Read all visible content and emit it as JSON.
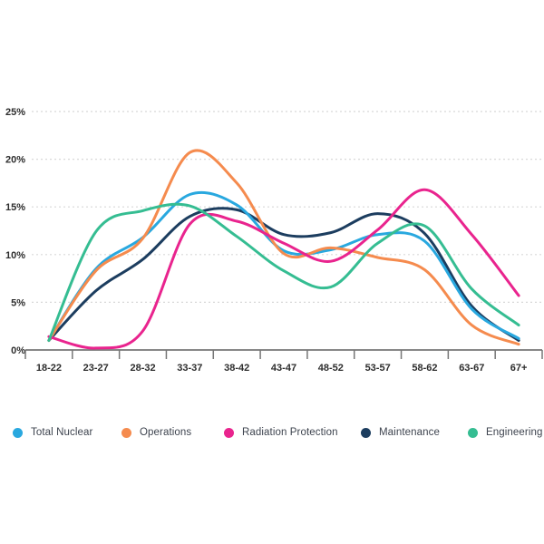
{
  "chart_data": {
    "type": "line",
    "title": "",
    "categories": [
      "18-22",
      "23-27",
      "28-32",
      "33-37",
      "38-42",
      "43-47",
      "48-52",
      "53-57",
      "58-62",
      "63-67",
      "67+"
    ],
    "series": [
      {
        "name": "Total Nuclear",
        "color": "#29a8df",
        "values": [
          1.0,
          8.5,
          11.8,
          16.3,
          15.2,
          10.4,
          10.5,
          12.1,
          11.4,
          4.3,
          1.2
        ]
      },
      {
        "name": "Operations",
        "color": "#f58b4e",
        "values": [
          1.0,
          8.3,
          11.7,
          20.7,
          17.5,
          10.1,
          10.7,
          9.7,
          8.4,
          2.6,
          0.6
        ]
      },
      {
        "name": "Radiation Protection",
        "color": "#e9248e",
        "values": [
          1.4,
          0.2,
          2.0,
          13.2,
          13.5,
          11.2,
          9.3,
          12.6,
          16.8,
          12.1,
          5.7
        ]
      },
      {
        "name": "Maintenance",
        "color": "#1c3d5f",
        "values": [
          1.0,
          6.2,
          9.5,
          14.0,
          14.7,
          12.1,
          12.3,
          14.3,
          12.2,
          4.6,
          1.0
        ]
      },
      {
        "name": "Engineering",
        "color": "#35bd92",
        "values": [
          1.0,
          12.4,
          14.6,
          15.1,
          11.9,
          8.3,
          6.6,
          11.2,
          13.0,
          6.4,
          2.6
        ]
      }
    ],
    "y_axis": {
      "unit": "%",
      "min": 0,
      "max": 25,
      "step": 5,
      "tick_labels": [
        "0%",
        "5%",
        "10%",
        "15%",
        "20%",
        "25%"
      ]
    },
    "x_axis": {
      "tick_labels": [
        "18-22",
        "23-27",
        "28-32",
        "33-37",
        "38-42",
        "43-47",
        "48-52",
        "53-57",
        "58-62",
        "63-67",
        "67+"
      ]
    },
    "grid": "horizontal-dashed",
    "legend_position": "bottom",
    "colors": {
      "axis_line": "#767676",
      "grid_line": "#d8d8d8",
      "axis_label": "#2d2d2d",
      "legend_text": "#3d434e",
      "background": "#ffffff"
    }
  }
}
